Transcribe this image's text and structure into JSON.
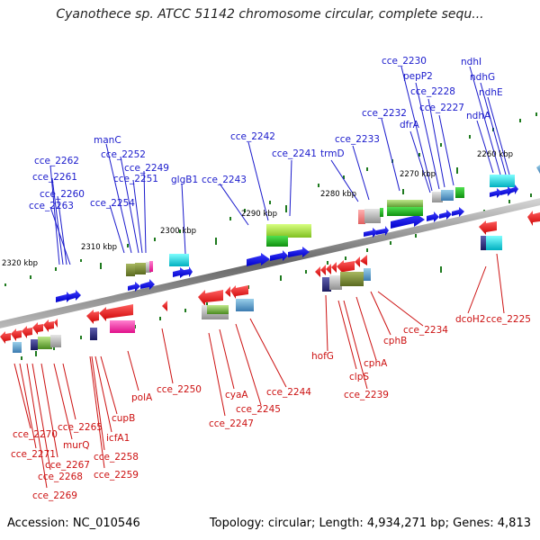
{
  "title": "Cyanothece sp. ATCC 51142 chromosome circular, complete sequ...",
  "footer": {
    "accession": "Accession: NC_010546",
    "summary": "Topology: circular; Length: 4,934,271 bp; Genes: 4,813"
  },
  "kbp_labels": [
    "2320 kbp",
    "2310 kbp",
    "2300 kbp",
    "2290 kbp",
    "2280 kbp",
    "2270 kbp",
    "2260 kbp"
  ],
  "genes_top": [
    "cce_2262",
    "cce_2261",
    "cce_2260",
    "cce_2263",
    "manC",
    "cce_2252",
    "cce_2249",
    "cce_2251",
    "cce_2254",
    "glgB1",
    "cce_2243",
    "cce_2242",
    "cce_2241",
    "trmD",
    "cce_2233",
    "cce_2232",
    "cce_2230",
    "pepP2",
    "cce_2228",
    "dfrA",
    "cce_2227",
    "ndhI",
    "ndhG",
    "ndhE",
    "ndhA"
  ],
  "genes_bottom": [
    "cce_2270",
    "cce_2271",
    "cce_2265",
    "murQ",
    "cce_2267",
    "cce_2268",
    "cce_2269",
    "cupB",
    "icfA1",
    "cce_2258",
    "cce_2259",
    "polA",
    "cce_2250",
    "cyaA",
    "cce_2247",
    "cce_2245",
    "cce_2244",
    "hofG",
    "clpS",
    "cce_2239",
    "cphA",
    "cphB",
    "cce_2234",
    "dcoH2",
    "cce_2225"
  ],
  "colors": {
    "forward_strand": "#0000ee",
    "reverse_strand": "#ee0000",
    "top_labels": "#1a1acc",
    "bottom_labels": "#cc1111",
    "tick": "#1e7a1e"
  }
}
